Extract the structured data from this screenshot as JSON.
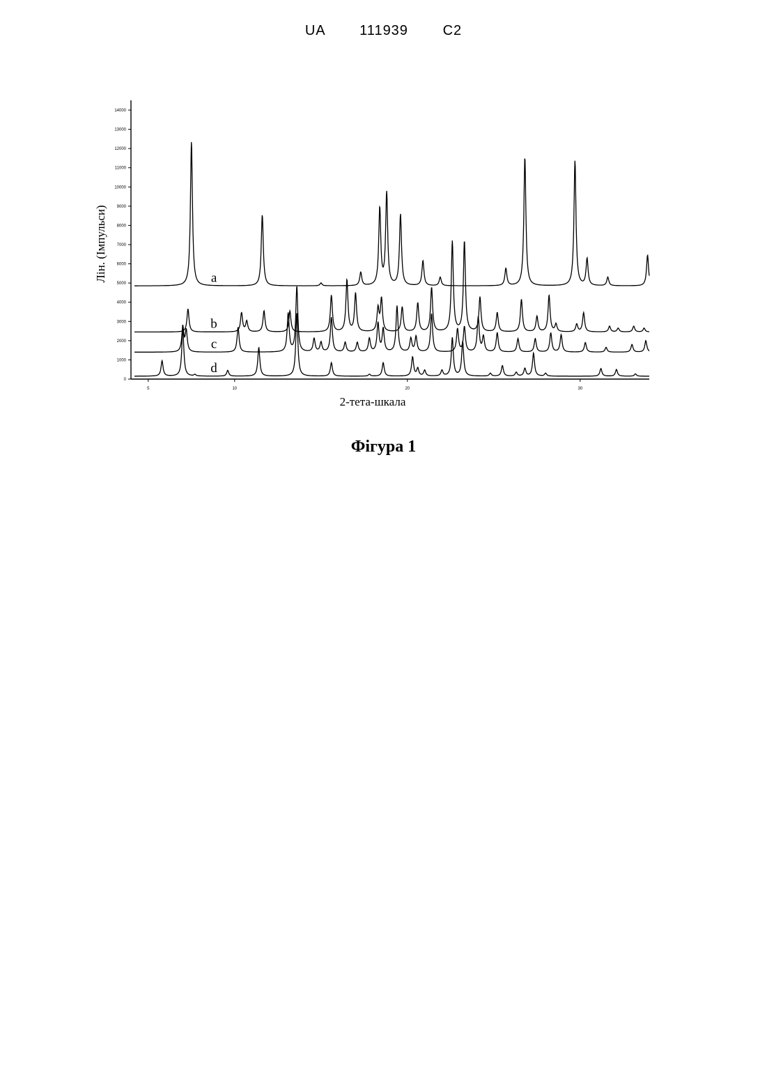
{
  "header": {
    "text": "UA   111939   C2"
  },
  "caption": "Фігура 1",
  "chart_data": {
    "type": "line",
    "xlabel": "2-тета-шкала",
    "ylabel": "Лін. (Імпульси)",
    "xlim": [
      4,
      34
    ],
    "ylim": [
      0,
      14000
    ],
    "x_ticks": [
      5,
      10,
      20,
      30
    ],
    "x_tick_labels": [
      "5",
      "10",
      "20",
      "30"
    ],
    "y_ticks": [
      0,
      1000,
      2000,
      3000,
      4000,
      5000,
      6000,
      7000,
      8000,
      9000,
      10000,
      11000,
      12000,
      13000,
      14000
    ],
    "y_tick_labels": [
      "0",
      "1000",
      "2000",
      "3000",
      "4000",
      "5000",
      "6000",
      "7000",
      "8000",
      "9000",
      "10000",
      "11000",
      "12000",
      "13000",
      "14000"
    ],
    "grid": false,
    "legend": "inline labels",
    "series": [
      {
        "name": "a",
        "baseline": 4850,
        "label_x": 8.8,
        "peaks": [
          [
            7.5,
            7500
          ],
          [
            11.6,
            3700
          ],
          [
            15.0,
            150
          ],
          [
            17.3,
            700
          ],
          [
            18.4,
            4000
          ],
          [
            18.8,
            4800
          ],
          [
            19.6,
            3700
          ],
          [
            20.9,
            1300
          ],
          [
            21.9,
            450
          ],
          [
            25.7,
            900
          ],
          [
            26.8,
            6700
          ],
          [
            29.7,
            6500
          ],
          [
            30.4,
            1400
          ],
          [
            31.6,
            450
          ],
          [
            33.9,
            1600
          ]
        ]
      },
      {
        "name": "b",
        "baseline": 2450,
        "label_x": 8.8,
        "peaks": [
          [
            7.3,
            1200
          ],
          [
            10.4,
            1000
          ],
          [
            10.7,
            550
          ],
          [
            11.7,
            1100
          ],
          [
            13.2,
            1100
          ],
          [
            15.6,
            1900
          ],
          [
            16.5,
            2700
          ],
          [
            17.0,
            2000
          ],
          [
            18.3,
            1200
          ],
          [
            18.5,
            1700
          ],
          [
            19.7,
            1300
          ],
          [
            20.6,
            1500
          ],
          [
            21.4,
            2300
          ],
          [
            22.6,
            4700
          ],
          [
            23.3,
            4700
          ],
          [
            24.2,
            1800
          ],
          [
            25.2,
            1000
          ],
          [
            26.6,
            1700
          ],
          [
            27.5,
            800
          ],
          [
            28.2,
            1900
          ],
          [
            28.6,
            400
          ],
          [
            29.8,
            400
          ],
          [
            30.2,
            1000
          ],
          [
            31.7,
            300
          ],
          [
            32.2,
            200
          ],
          [
            33.1,
            300
          ],
          [
            33.7,
            200
          ]
        ]
      },
      {
        "name": "c",
        "baseline": 1400,
        "label_x": 8.8,
        "peaks": [
          [
            7.0,
            1300
          ],
          [
            7.2,
            1100
          ],
          [
            10.2,
            1300
          ],
          [
            13.1,
            2000
          ],
          [
            13.6,
            3400
          ],
          [
            14.6,
            700
          ],
          [
            15.0,
            500
          ],
          [
            15.6,
            1800
          ],
          [
            16.4,
            500
          ],
          [
            17.1,
            500
          ],
          [
            17.8,
            700
          ],
          [
            18.3,
            1500
          ],
          [
            18.6,
            1200
          ],
          [
            19.4,
            2400
          ],
          [
            20.2,
            700
          ],
          [
            20.5,
            800
          ],
          [
            21.4,
            2000
          ],
          [
            22.9,
            1200
          ],
          [
            23.3,
            1300
          ],
          [
            24.1,
            1800
          ],
          [
            24.4,
            800
          ],
          [
            25.2,
            1000
          ],
          [
            26.4,
            700
          ],
          [
            27.4,
            700
          ],
          [
            28.3,
            1000
          ],
          [
            28.9,
            900
          ],
          [
            30.3,
            500
          ],
          [
            31.5,
            250
          ],
          [
            33.0,
            400
          ],
          [
            33.8,
            600
          ]
        ]
      },
      {
        "name": "d",
        "baseline": 150,
        "label_x": 8.8,
        "peaks": [
          [
            5.8,
            800
          ],
          [
            7.0,
            2500
          ],
          [
            7.7,
            80
          ],
          [
            9.6,
            300
          ],
          [
            11.4,
            1500
          ],
          [
            13.6,
            3300
          ],
          [
            15.6,
            700
          ],
          [
            17.8,
            100
          ],
          [
            18.6,
            700
          ],
          [
            20.3,
            1000
          ],
          [
            20.6,
            400
          ],
          [
            21.0,
            300
          ],
          [
            22.0,
            300
          ],
          [
            22.6,
            2000
          ],
          [
            23.2,
            1800
          ],
          [
            24.8,
            150
          ],
          [
            25.5,
            550
          ],
          [
            26.3,
            200
          ],
          [
            26.8,
            400
          ],
          [
            27.3,
            1200
          ],
          [
            28.0,
            150
          ],
          [
            31.2,
            400
          ],
          [
            32.1,
            350
          ],
          [
            33.2,
            120
          ]
        ]
      }
    ]
  }
}
